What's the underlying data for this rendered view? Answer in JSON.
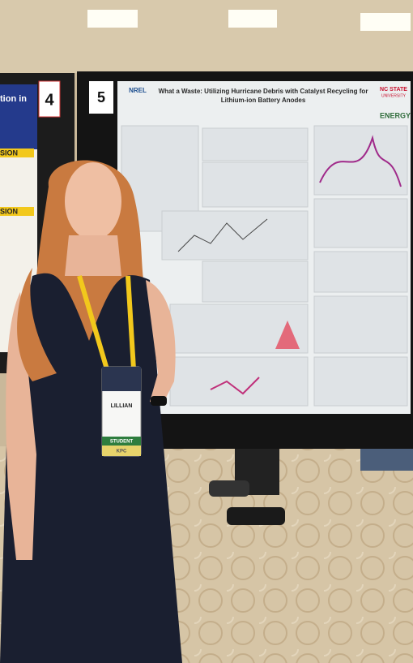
{
  "left_poster": {
    "number": "4",
    "heading": "tion in",
    "labels": [
      "SION",
      "SION"
    ]
  },
  "poster": {
    "number": "5",
    "title": [
      "What a Waste: Utilizing Hurricane Debris with Catalyst Recycling for",
      "Lithium-ion Battery Anodes"
    ],
    "logos": [
      "NREL",
      "NC STATE",
      "UNIVERSITY",
      "ENERGY"
    ]
  },
  "badge": {
    "name": "LILLIAN",
    "role": "STUDENT",
    "code": "KPC"
  }
}
